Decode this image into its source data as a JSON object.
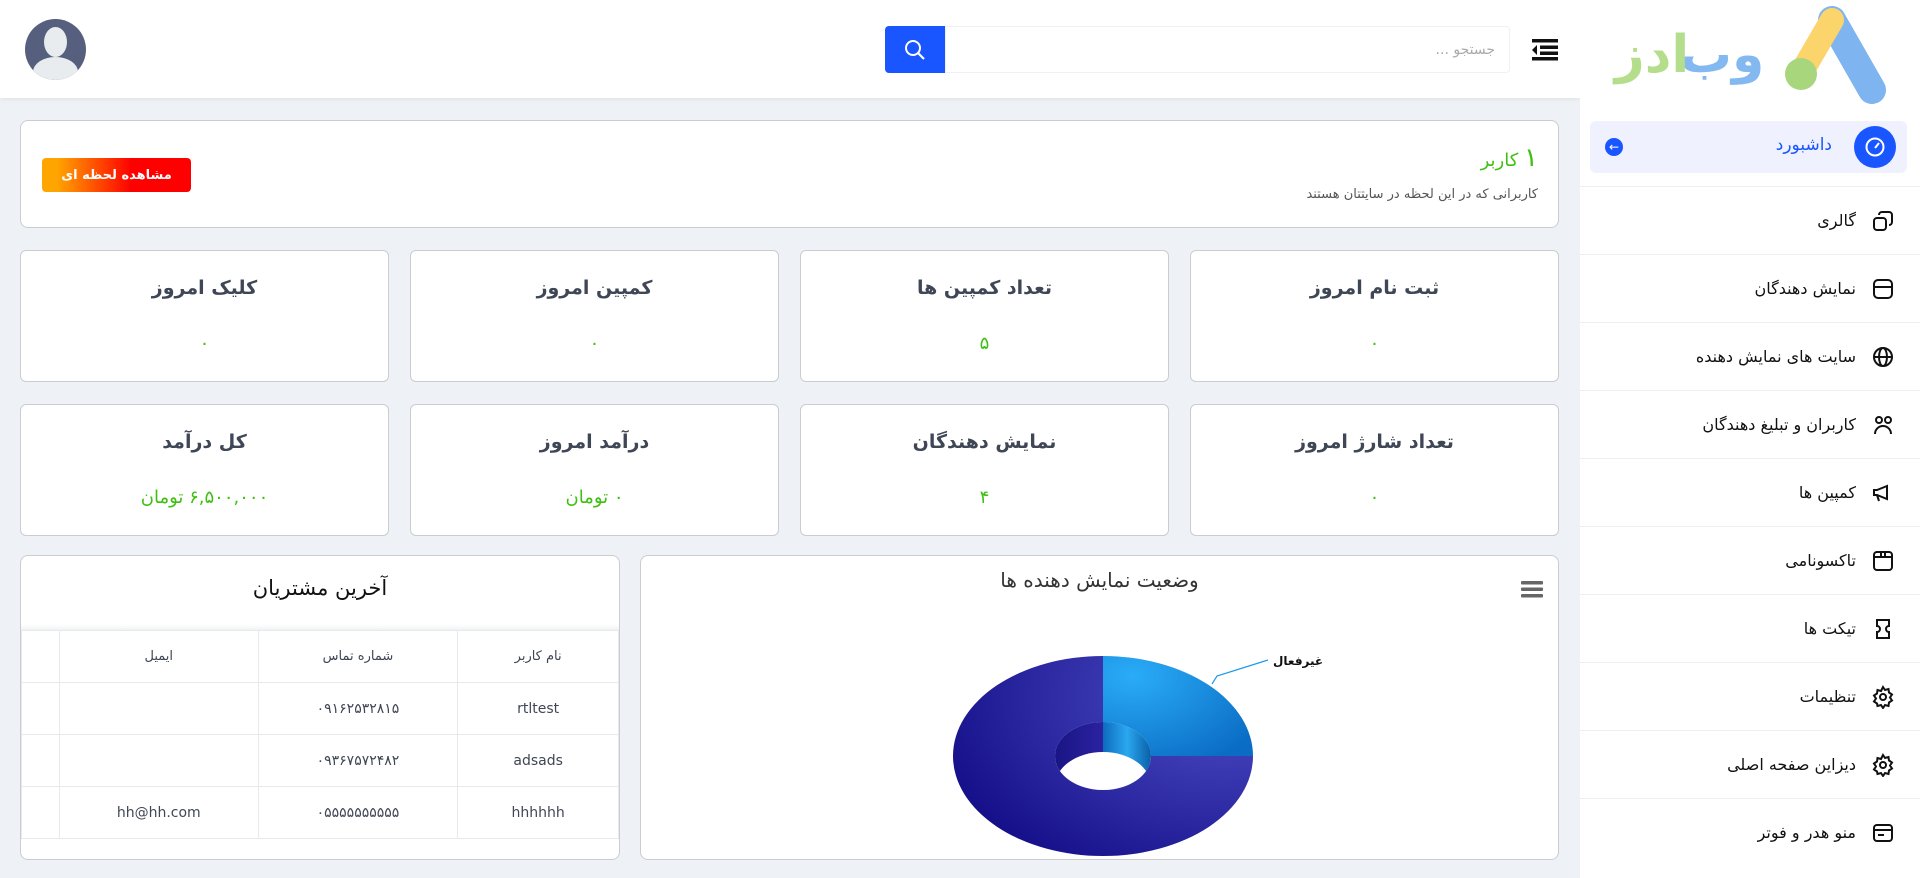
{
  "header": {
    "search_placeholder": "جستجو ...",
    "search_icon": "search-icon",
    "menu_icon": "menu-toggle-icon",
    "avatar_icon": "user-avatar"
  },
  "sidebar": {
    "logo_text": "وب ادز",
    "active": {
      "label": "داشبورد",
      "icon": "dashboard-gauge-icon"
    },
    "items": [
      {
        "label": "گالری",
        "icon": "gallery-icon"
      },
      {
        "label": "نمایش دهندگان",
        "icon": "store-icon"
      },
      {
        "label": "سایت های نمایش دهنده",
        "icon": "globe-icon"
      },
      {
        "label": "کاربران و تبلیغ دهندگان",
        "icon": "users-icon"
      },
      {
        "label": "کمپین ها",
        "icon": "megaphone-icon"
      },
      {
        "label": "تاکسونامی",
        "icon": "box-icon"
      },
      {
        "label": "تیکت ها",
        "icon": "ticket-icon"
      },
      {
        "label": "تنظیمات",
        "icon": "gear-icon"
      },
      {
        "label": "دیزاین صفحه اصلی",
        "icon": "gear-icon"
      },
      {
        "label": "منو هدر و فوتر",
        "icon": "layout-icon"
      }
    ]
  },
  "online": {
    "count": "۱",
    "unit": "کاربر",
    "subtitle": "کاربرانی که در این لحظه در سایتتان هستند",
    "button": "مشاهده لحظه ای"
  },
  "stats_row1": [
    {
      "title": "ثبت نام امروز",
      "value": "۰"
    },
    {
      "title": "تعداد کمپین ها",
      "value": "۵"
    },
    {
      "title": "کمپین امروز",
      "value": "۰"
    },
    {
      "title": "کلیک امروز",
      "value": "۰"
    }
  ],
  "stats_row2": [
    {
      "title": "تعداد شارژ امروز",
      "value": "۰"
    },
    {
      "title": "نمایش دهندگان",
      "value": "۴"
    },
    {
      "title": "درآمد امروز",
      "value": "۰ تومان"
    },
    {
      "title": "کل درآمد",
      "value": "۶,۵۰۰,۰۰۰ تومان"
    }
  ],
  "customers": {
    "title": "آخرین مشتریان",
    "columns": [
      "نام کاربر",
      "شماره تماس",
      "ایمیل",
      ""
    ],
    "rows": [
      [
        "rtltest",
        "۰۹۱۶۲۵۳۲۸۱۵",
        ""
      ],
      [
        "adsads",
        "۰۹۳۶۷۵۷۲۴۸۲",
        ""
      ],
      [
        "hhhhhh",
        "۰۵۵۵۵۵۵۵۵۵۵",
        "hh@hh.com"
      ]
    ]
  },
  "chart_data": {
    "type": "pie",
    "title": "وضعیت نمایش دهنده ها",
    "style": "3d-donut",
    "slices": [
      {
        "name": "غیرفعال",
        "value": 1,
        "color": "#1e9be8"
      },
      {
        "value": 3,
        "color": "#2a22a0"
      }
    ]
  },
  "colors": {
    "accent": "#1a56ff",
    "value_green": "#3fbf12"
  }
}
